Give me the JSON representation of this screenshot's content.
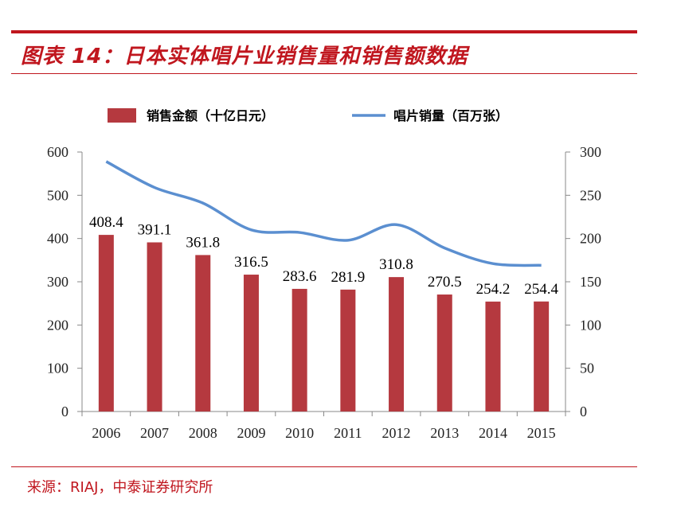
{
  "header": {
    "title": "图表 14：日本实体唱片业销售量和销售额数据"
  },
  "footer": {
    "source": "来源：RIAJ，中泰证券研究所"
  },
  "chart_data": {
    "type": "bar",
    "categories": [
      "2006",
      "2007",
      "2008",
      "2009",
      "2010",
      "2011",
      "2012",
      "2013",
      "2014",
      "2015"
    ],
    "series": [
      {
        "name": "销售金额（十亿日元）",
        "type": "bar",
        "axis": "left",
        "color": "#b5393f",
        "values": [
          408.4,
          391.1,
          361.8,
          316.5,
          283.6,
          281.9,
          310.8,
          270.5,
          254.2,
          254.4
        ],
        "labels": [
          "408.4",
          "391.1",
          "361.8",
          "316.5",
          "283.6",
          "281.9",
          "310.8",
          "270.5",
          "254.2",
          "254.4"
        ]
      },
      {
        "name": "唱片销量（百万张）",
        "type": "line",
        "axis": "right",
        "color": "#5b8fd0",
        "values": [
          289,
          259,
          241,
          210,
          207,
          198,
          216,
          189,
          171,
          169
        ]
      }
    ],
    "y_left": {
      "ylim": [
        0,
        600
      ],
      "ticks": [
        "0",
        "100",
        "200",
        "300",
        "400",
        "500",
        "600"
      ]
    },
    "y_right": {
      "ylim": [
        0,
        300
      ],
      "ticks": [
        "0",
        "50",
        "100",
        "150",
        "200",
        "250",
        "300"
      ]
    },
    "legend": "top",
    "grid": false
  }
}
